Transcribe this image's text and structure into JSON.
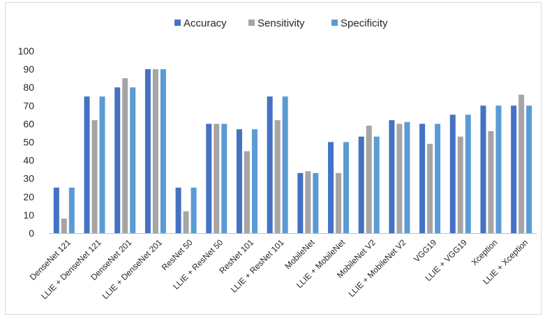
{
  "chart_data": {
    "type": "bar",
    "categories": [
      "DenseNet 121",
      "LLIE + DenseNet 121",
      "DenseNet 201",
      "LLIE + DenseNet 201",
      "ResNet 50",
      "LLIE + ResNet 50",
      "ResNet 101",
      "LLIE + ResNet 101",
      "MobileNet",
      "LLIE + MobileNet",
      "MobileNet V2",
      "LLIE + MobileNet V2",
      "VGG19",
      "LLIE + VGG19",
      "Xception",
      "LLIE + Xception"
    ],
    "series": [
      {
        "name": "Accuracy",
        "color": "#4472c4",
        "values": [
          25,
          75,
          80,
          90,
          25,
          60,
          57,
          75,
          33,
          50,
          53,
          62,
          60,
          65,
          70,
          70
        ]
      },
      {
        "name": "Sensitivity",
        "color": "#a5a5a5",
        "values": [
          8,
          62,
          85,
          90,
          12,
          60,
          45,
          62,
          34,
          33,
          59,
          60,
          49,
          53,
          56,
          76
        ]
      },
      {
        "name": "Specificity",
        "color": "#5b9bd5",
        "values": [
          25,
          75,
          80,
          90,
          25,
          60,
          57,
          75,
          33,
          50,
          53,
          61,
          60,
          65,
          70,
          70
        ]
      }
    ],
    "ylim": [
      0,
      100
    ],
    "yticks": [
      0,
      10,
      20,
      30,
      40,
      50,
      60,
      70,
      80,
      90,
      100
    ],
    "grid": false,
    "legend_position": "top-center"
  }
}
